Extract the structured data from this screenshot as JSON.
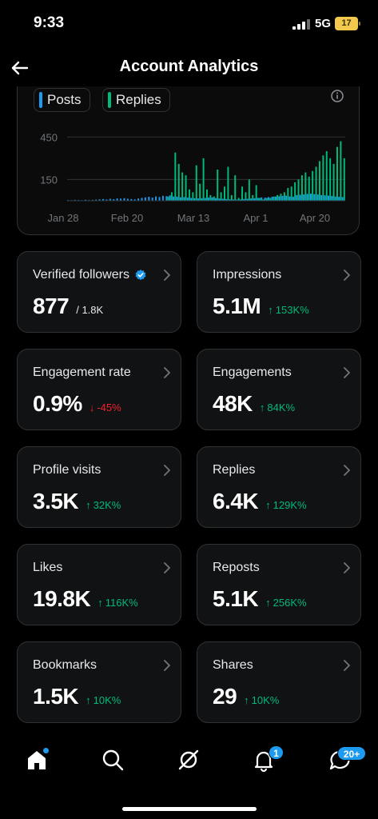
{
  "status_bar": {
    "time": "9:33",
    "network": "5G",
    "battery": "17"
  },
  "header": {
    "title": "Account Analytics",
    "back_icon": "arrow-left-icon"
  },
  "chart": {
    "legend": [
      {
        "label": "Posts",
        "color": "#1d9bf0"
      },
      {
        "label": "Replies",
        "color": "#00ba7c"
      }
    ]
  },
  "chart_data": {
    "type": "bar",
    "x_tick_labels": [
      "Jan 28",
      "Feb 20",
      "Mar 13",
      "Apr 1",
      "Apr 20"
    ],
    "y_tick_labels": [
      "450",
      "150"
    ],
    "ylim": [
      0,
      525
    ],
    "grid": true,
    "series": [
      {
        "name": "Posts",
        "color": "#1d9bf0",
        "values": [
          5,
          4,
          6,
          5,
          4,
          7,
          5,
          6,
          8,
          10,
          12,
          9,
          14,
          11,
          16,
          15,
          18,
          14,
          12,
          10,
          16,
          20,
          24,
          28,
          22,
          30,
          26,
          35,
          32,
          38,
          30,
          28,
          24,
          26,
          22,
          20,
          18,
          16,
          18,
          20,
          22,
          24,
          18,
          16,
          14,
          12,
          10,
          9,
          8,
          10,
          12,
          14,
          16,
          18,
          20,
          24,
          22,
          26,
          28,
          30,
          32,
          34,
          36,
          30,
          28,
          40,
          42,
          45,
          48,
          50,
          46,
          44,
          40,
          38,
          36,
          34,
          30,
          28,
          26
        ]
      },
      {
        "name": "Replies",
        "color": "#00ba7c",
        "values": [
          0,
          0,
          0,
          0,
          0,
          0,
          0,
          0,
          0,
          0,
          0,
          0,
          0,
          0,
          0,
          0,
          0,
          0,
          0,
          0,
          0,
          0,
          0,
          0,
          0,
          0,
          0,
          0,
          30,
          60,
          340,
          260,
          200,
          180,
          80,
          60,
          250,
          120,
          300,
          80,
          40,
          30,
          220,
          60,
          100,
          240,
          40,
          180,
          20,
          100,
          60,
          150,
          40,
          110,
          20,
          10,
          20,
          20,
          30,
          40,
          50,
          60,
          90,
          100,
          130,
          150,
          180,
          200,
          170,
          210,
          240,
          280,
          320,
          350,
          300,
          260,
          380,
          420,
          300
        ]
      }
    ]
  },
  "stats": [
    {
      "label": "Verified followers",
      "value": "877",
      "sub": "/ 1.8K",
      "verified": true
    },
    {
      "label": "Impressions",
      "value": "5.1M",
      "change": "153K%",
      "direction": "up"
    },
    {
      "label": "Engagement rate",
      "value": "0.9%",
      "change": "-45%",
      "direction": "down"
    },
    {
      "label": "Engagements",
      "value": "48K",
      "change": "84K%",
      "direction": "up"
    },
    {
      "label": "Profile visits",
      "value": "3.5K",
      "change": "32K%",
      "direction": "up"
    },
    {
      "label": "Replies",
      "value": "6.4K",
      "change": "129K%",
      "direction": "up"
    },
    {
      "label": "Likes",
      "value": "19.8K",
      "change": "116K%",
      "direction": "up"
    },
    {
      "label": "Reposts",
      "value": "5.1K",
      "change": "256K%",
      "direction": "up"
    },
    {
      "label": "Bookmarks",
      "value": "1.5K",
      "change": "10K%",
      "direction": "up"
    },
    {
      "label": "Shares",
      "value": "29",
      "change": "10K%",
      "direction": "up"
    }
  ],
  "bottom_nav": {
    "items": [
      "home-icon",
      "search-icon",
      "grok-icon",
      "notifications-icon",
      "messages-icon"
    ],
    "notifications_badge": "1",
    "messages_badge": "20+"
  }
}
